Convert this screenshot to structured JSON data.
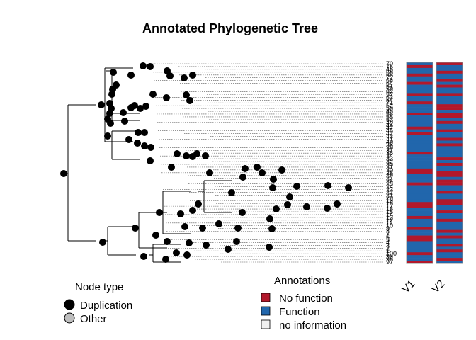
{
  "title": "Annotated Phylogenetic Tree",
  "legend_node": {
    "title": "Node type",
    "items": [
      {
        "label": "Duplication",
        "color": "#000000"
      },
      {
        "label": "Other",
        "color": "#bebebe"
      }
    ]
  },
  "legend_annot": {
    "title": "Annotations",
    "items": [
      {
        "label": "No function",
        "color": "#b2182b"
      },
      {
        "label": "Function",
        "color": "#2166ac"
      },
      {
        "label": "no information",
        "color": "#f0f0f0"
      }
    ]
  },
  "heatmap": {
    "columns": [
      "V1",
      "V2"
    ],
    "colors": {
      "no_function": "#b2182b",
      "function": "#2166ac"
    }
  },
  "tip_labels": [
    "70",
    "75",
    "46",
    "68",
    "65",
    "72",
    "66",
    "64",
    "61",
    "59",
    "62",
    "57",
    "63",
    "54",
    "71",
    "52",
    "50",
    "48",
    "56",
    "55",
    "53",
    "49",
    "44",
    "47",
    "45",
    "42",
    "43",
    "41",
    "40",
    "38",
    "39",
    "37",
    "36",
    "34",
    "33",
    "32",
    "35",
    "31",
    "30",
    "28",
    "29",
    "27",
    "26",
    "25",
    "24",
    "23",
    "22",
    "21",
    "20",
    "19",
    "18",
    "17",
    "16",
    "15",
    "14",
    "13",
    "12",
    "11",
    "10",
    "9",
    "8",
    "7",
    "6",
    "5",
    "4",
    "3",
    "2",
    "1",
    "100",
    "99",
    "98",
    "97"
  ],
  "v1": [
    "F",
    "N",
    "F",
    "F",
    "N",
    "F",
    "F",
    "N",
    "F",
    "F",
    "F",
    "N",
    "F",
    "F",
    "N",
    "F",
    "F",
    "F",
    "N",
    "F",
    "F",
    "F",
    "F",
    "N",
    "F",
    "N",
    "F",
    "F",
    "F",
    "F",
    "F",
    "F",
    "N",
    "F",
    "F",
    "F",
    "F",
    "F",
    "N",
    "N",
    "F",
    "F",
    "F",
    "N",
    "F",
    "F",
    "F",
    "F",
    "F",
    "F",
    "N",
    "N",
    "F",
    "F",
    "F",
    "N",
    "F",
    "F",
    "F",
    "N",
    "F",
    "F",
    "N",
    "N",
    "F",
    "F",
    "F",
    "F",
    "N",
    "F",
    "F",
    "N"
  ],
  "v2": [
    "N",
    "F",
    "F",
    "N",
    "F",
    "F",
    "N",
    "F",
    "N",
    "F",
    "F",
    "N",
    "F",
    "F",
    "F",
    "N",
    "N",
    "F",
    "N",
    "N",
    "F",
    "N",
    "F",
    "F",
    "N",
    "F",
    "F",
    "N",
    "F",
    "N",
    "F",
    "F",
    "F",
    "F",
    "N",
    "F",
    "N",
    "F",
    "F",
    "N",
    "N",
    "F",
    "N",
    "N",
    "F",
    "F",
    "N",
    "F",
    "F",
    "N",
    "N",
    "F",
    "F",
    "N",
    "F",
    "F",
    "N",
    "F",
    "F",
    "F",
    "N",
    "F",
    "N",
    "F",
    "F",
    "N",
    "F",
    "N",
    "F",
    "F",
    "N",
    "F"
  ]
}
